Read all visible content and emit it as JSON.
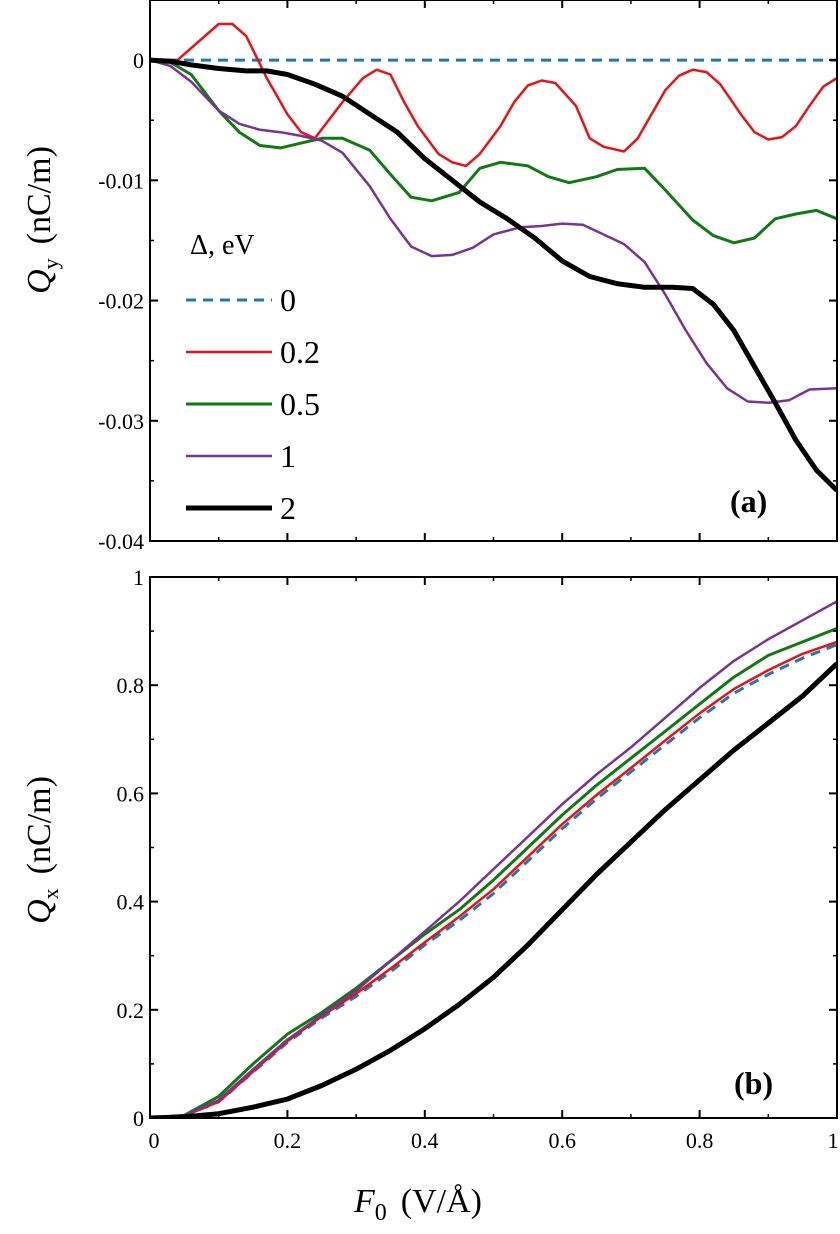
{
  "chart_data": [
    {
      "type": "line",
      "panel_label": "(a)",
      "ylabel_sym": "Q",
      "ylabel_sub": "y",
      "ylabel_unit": "(nC/m)",
      "xlim": [
        0,
        1
      ],
      "ylim": [
        -0.04,
        0.005
      ],
      "yticks": [
        0,
        -0.01,
        -0.02,
        -0.03,
        -0.04
      ],
      "ytick_labels": [
        "0",
        "-0.01",
        "-0.02",
        "-0.03",
        "-0.04"
      ],
      "xticks": [
        0,
        0.2,
        0.4,
        0.6,
        0.8,
        1
      ],
      "legend_title": "Δ, eV",
      "legend_position": "left",
      "series": [
        {
          "name": "0",
          "color": "#1f77b4",
          "style": "dashed",
          "width": 3,
          "x": [
            0,
            1
          ],
          "y": [
            0,
            0
          ]
        },
        {
          "name": "0.2",
          "color": "#ee1111",
          "style": "solid",
          "width": 2.5,
          "x": [
            0,
            0.04,
            0.07,
            0.1,
            0.12,
            0.14,
            0.17,
            0.2,
            0.22,
            0.24,
            0.26,
            0.28,
            0.31,
            0.33,
            0.35,
            0.37,
            0.39,
            0.42,
            0.44,
            0.46,
            0.48,
            0.51,
            0.53,
            0.55,
            0.57,
            0.59,
            0.62,
            0.64,
            0.66,
            0.69,
            0.71,
            0.73,
            0.75,
            0.77,
            0.79,
            0.81,
            0.83,
            0.86,
            0.88,
            0.9,
            0.92,
            0.94,
            0.96,
            0.98,
            1
          ],
          "y": [
            0,
            0,
            0.0015,
            0.003,
            0.003,
            0.002,
            -0.0015,
            -0.0045,
            -0.006,
            -0.0065,
            -0.005,
            -0.0035,
            -0.0015,
            -0.0008,
            -0.0012,
            -0.0035,
            -0.0055,
            -0.0078,
            -0.0085,
            -0.0088,
            -0.0078,
            -0.0055,
            -0.0035,
            -0.0021,
            -0.0017,
            -0.0019,
            -0.0038,
            -0.0065,
            -0.0072,
            -0.0076,
            -0.0065,
            -0.0045,
            -0.0025,
            -0.0013,
            -0.0008,
            -0.001,
            -0.002,
            -0.0045,
            -0.006,
            -0.0066,
            -0.0064,
            -0.0055,
            -0.0038,
            -0.0022,
            -0.0015
          ]
        },
        {
          "name": "0.5",
          "color": "#0f7a0f",
          "style": "solid",
          "width": 3,
          "x": [
            0,
            0.03,
            0.06,
            0.1,
            0.13,
            0.16,
            0.19,
            0.22,
            0.25,
            0.28,
            0.32,
            0.35,
            0.38,
            0.41,
            0.45,
            0.48,
            0.51,
            0.55,
            0.58,
            0.61,
            0.65,
            0.68,
            0.72,
            0.75,
            0.79,
            0.82,
            0.85,
            0.88,
            0.91,
            0.94,
            0.97,
            1
          ],
          "y": [
            0,
            -0.0002,
            -0.0012,
            -0.0042,
            -0.006,
            -0.0071,
            -0.0073,
            -0.0069,
            -0.0065,
            -0.0065,
            -0.0075,
            -0.0095,
            -0.0114,
            -0.0117,
            -0.011,
            -0.009,
            -0.0085,
            -0.0088,
            -0.0097,
            -0.0102,
            -0.0097,
            -0.0091,
            -0.009,
            -0.0108,
            -0.0133,
            -0.0146,
            -0.0152,
            -0.0148,
            -0.0132,
            -0.0128,
            -0.0125,
            -0.0132
          ]
        },
        {
          "name": "1",
          "color": "#7b3294",
          "style": "solid",
          "width": 2.5,
          "x": [
            0,
            0.03,
            0.06,
            0.1,
            0.13,
            0.16,
            0.19,
            0.22,
            0.25,
            0.28,
            0.32,
            0.35,
            0.38,
            0.41,
            0.44,
            0.47,
            0.5,
            0.54,
            0.57,
            0.6,
            0.63,
            0.66,
            0.69,
            0.72,
            0.75,
            0.78,
            0.81,
            0.84,
            0.87,
            0.9,
            0.93,
            0.96,
            1
          ],
          "y": [
            0,
            -0.0005,
            -0.0018,
            -0.0042,
            -0.0053,
            -0.0058,
            -0.006,
            -0.0063,
            -0.0067,
            -0.0077,
            -0.0105,
            -0.0132,
            -0.0155,
            -0.0163,
            -0.0162,
            -0.0156,
            -0.0145,
            -0.0139,
            -0.0138,
            -0.0136,
            -0.0137,
            -0.0145,
            -0.0153,
            -0.0168,
            -0.0195,
            -0.0225,
            -0.0252,
            -0.0273,
            -0.0284,
            -0.0285,
            -0.0283,
            -0.0274,
            -0.0273
          ]
        },
        {
          "name": "2",
          "color": "#000000",
          "style": "solid",
          "width": 5,
          "x": [
            0,
            0.03,
            0.06,
            0.1,
            0.14,
            0.17,
            0.2,
            0.24,
            0.28,
            0.32,
            0.36,
            0.4,
            0.44,
            0.48,
            0.52,
            0.56,
            0.6,
            0.64,
            0.68,
            0.72,
            0.76,
            0.79,
            0.82,
            0.85,
            0.88,
            0.91,
            0.94,
            0.97,
            1
          ],
          "y": [
            0,
            -0.0001,
            -0.0004,
            -0.0007,
            -0.0009,
            -0.0009,
            -0.0012,
            -0.002,
            -0.003,
            -0.0045,
            -0.006,
            -0.0082,
            -0.01,
            -0.0118,
            -0.0132,
            -0.0148,
            -0.0167,
            -0.018,
            -0.0186,
            -0.0189,
            -0.0189,
            -0.019,
            -0.0203,
            -0.0225,
            -0.0255,
            -0.0285,
            -0.0316,
            -0.0341,
            -0.0358
          ]
        }
      ]
    },
    {
      "type": "line",
      "panel_label": "(b)",
      "ylabel_sym": "Q",
      "ylabel_sub": "x",
      "ylabel_unit": "(nC/m)",
      "xlabel_sym": "F",
      "xlabel_sub": "0",
      "xlabel_unit": "(V/Å)",
      "xlim": [
        0,
        1
      ],
      "ylim": [
        0,
        1
      ],
      "yticks": [
        0,
        0.2,
        0.4,
        0.6,
        0.8,
        1
      ],
      "ytick_labels": [
        "0",
        "0.2",
        "0.4",
        "0.6",
        "0.8",
        "1"
      ],
      "xticks": [
        0,
        0.2,
        0.4,
        0.6,
        0.8,
        1
      ],
      "xtick_labels": [
        "0",
        "0.2",
        "0.4",
        "0.6",
        "0.8",
        "1"
      ],
      "series": [
        {
          "name": "0",
          "color": "#1f77b4",
          "style": "dashed",
          "width": 3,
          "x": [
            0,
            0.05,
            0.1,
            0.15,
            0.2,
            0.25,
            0.3,
            0.35,
            0.4,
            0.45,
            0.5,
            0.55,
            0.6,
            0.65,
            0.7,
            0.75,
            0.8,
            0.85,
            0.9,
            0.95,
            1
          ],
          "y": [
            0,
            0.004,
            0.03,
            0.085,
            0.14,
            0.185,
            0.225,
            0.27,
            0.32,
            0.365,
            0.415,
            0.475,
            0.535,
            0.59,
            0.64,
            0.69,
            0.74,
            0.785,
            0.82,
            0.85,
            0.875
          ]
        },
        {
          "name": "0.2",
          "color": "#ee1111",
          "style": "solid",
          "width": 2.5,
          "x": [
            0,
            0.05,
            0.1,
            0.15,
            0.2,
            0.25,
            0.3,
            0.35,
            0.4,
            0.45,
            0.5,
            0.55,
            0.6,
            0.65,
            0.7,
            0.75,
            0.8,
            0.85,
            0.9,
            0.95,
            1
          ],
          "y": [
            0,
            0.004,
            0.03,
            0.086,
            0.142,
            0.188,
            0.23,
            0.276,
            0.325,
            0.372,
            0.423,
            0.483,
            0.543,
            0.597,
            0.647,
            0.698,
            0.748,
            0.793,
            0.828,
            0.858,
            0.88
          ]
        },
        {
          "name": "0.5",
          "color": "#0f7a0f",
          "style": "solid",
          "width": 3,
          "x": [
            0,
            0.05,
            0.1,
            0.15,
            0.2,
            0.25,
            0.3,
            0.35,
            0.4,
            0.45,
            0.5,
            0.55,
            0.6,
            0.65,
            0.7,
            0.75,
            0.8,
            0.85,
            0.9,
            0.95,
            1
          ],
          "y": [
            0,
            0.005,
            0.04,
            0.1,
            0.155,
            0.195,
            0.24,
            0.29,
            0.34,
            0.385,
            0.44,
            0.5,
            0.56,
            0.615,
            0.665,
            0.715,
            0.765,
            0.815,
            0.855,
            0.88,
            0.905
          ]
        },
        {
          "name": "1",
          "color": "#7b3294",
          "style": "solid",
          "width": 2.5,
          "x": [
            0,
            0.05,
            0.1,
            0.15,
            0.2,
            0.25,
            0.3,
            0.35,
            0.4,
            0.45,
            0.5,
            0.55,
            0.6,
            0.65,
            0.7,
            0.75,
            0.8,
            0.85,
            0.9,
            0.95,
            1
          ],
          "y": [
            0,
            0.004,
            0.033,
            0.09,
            0.145,
            0.19,
            0.235,
            0.29,
            0.345,
            0.4,
            0.46,
            0.52,
            0.58,
            0.635,
            0.685,
            0.74,
            0.795,
            0.845,
            0.885,
            0.92,
            0.955
          ]
        },
        {
          "name": "2",
          "color": "#000000",
          "style": "solid",
          "width": 5,
          "x": [
            0,
            0.05,
            0.1,
            0.15,
            0.2,
            0.25,
            0.3,
            0.35,
            0.4,
            0.45,
            0.5,
            0.55,
            0.6,
            0.65,
            0.7,
            0.75,
            0.8,
            0.85,
            0.9,
            0.95,
            1
          ],
          "y": [
            0,
            0.002,
            0.008,
            0.02,
            0.035,
            0.06,
            0.09,
            0.125,
            0.165,
            0.21,
            0.26,
            0.32,
            0.385,
            0.45,
            0.51,
            0.57,
            0.625,
            0.68,
            0.73,
            0.78,
            0.84
          ]
        }
      ]
    }
  ]
}
